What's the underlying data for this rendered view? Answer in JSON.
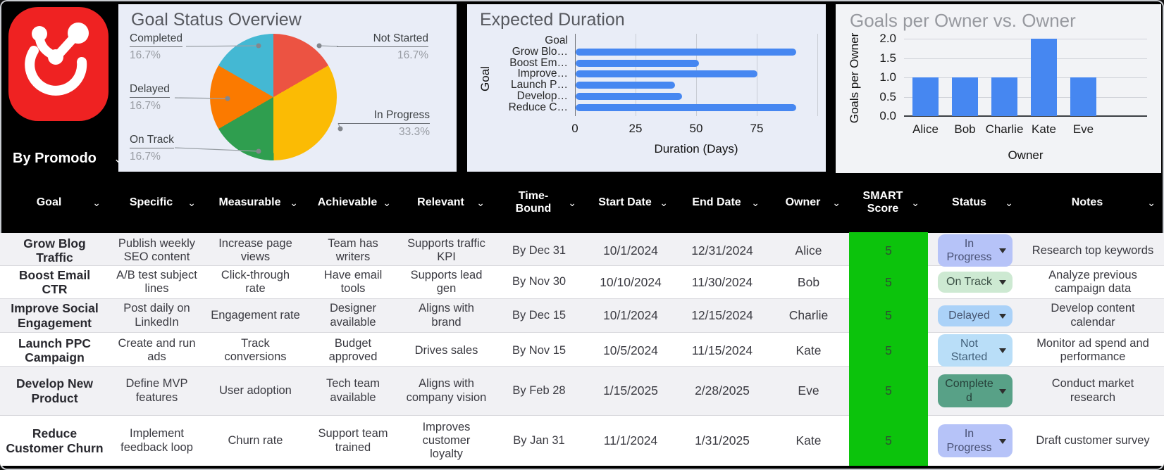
{
  "branding": {
    "by_label": "By Promodo"
  },
  "icons": {
    "chevron_down": "⌄"
  },
  "chart_data": [
    {
      "type": "pie",
      "title": "Goal Status Overview",
      "legend_position": "labeled-callouts",
      "slices": [
        {
          "label": "Not Started",
          "value": 16.7,
          "pct_label": "16.7%",
          "color": "#ec5342"
        },
        {
          "label": "In Progress",
          "value": 33.3,
          "pct_label": "33.3%",
          "color": "#fbbb04"
        },
        {
          "label": "On Track",
          "value": 16.7,
          "pct_label": "16.7%",
          "color": "#2f9e4f"
        },
        {
          "label": "Delayed",
          "value": 16.7,
          "pct_label": "16.7%",
          "color": "#fb7a00"
        },
        {
          "label": "Completed",
          "value": 16.7,
          "pct_label": "16.7%",
          "color": "#44b8d3"
        }
      ]
    },
    {
      "type": "bar",
      "orientation": "horizontal",
      "title": "Expected Duration",
      "xlabel": "Duration (Days)",
      "ylabel": "Goal",
      "categories": [
        "Goal",
        "Grow Blo…",
        "Boost Em…",
        "Improve…",
        "Launch P…",
        "Develop…",
        "Reduce C…"
      ],
      "values": [
        0,
        91,
        51,
        75,
        41,
        44,
        91
      ],
      "xticks": [
        0,
        25,
        50,
        75
      ],
      "grid_ticks": [
        0,
        25,
        50,
        75,
        100
      ],
      "xmax": 100,
      "bar_color": "#4687f1",
      "grid": true
    },
    {
      "type": "bar",
      "orientation": "vertical",
      "title": "Goals per Owner vs. Owner",
      "xlabel": "Owner",
      "ylabel": "Goals per Owner",
      "categories": [
        "Alice",
        "Bob",
        "Charlie",
        "Kate",
        "Eve"
      ],
      "values": [
        1,
        1,
        1,
        2,
        1
      ],
      "yticks": [
        0,
        0.5,
        1,
        1.5,
        2
      ],
      "ytick_labels": [
        "0.0",
        "0.5",
        "1.0",
        "1.5",
        "2.0"
      ],
      "ymax": 2,
      "ylim": [
        0,
        2
      ],
      "bar_color": "#4687f1",
      "grid": true
    }
  ],
  "table": {
    "columns": [
      "Goal",
      "Specific",
      "Measurable",
      "Achievable",
      "Relevant",
      "Time-Bound",
      "Start Date",
      "End Date",
      "Owner",
      "SMART Score",
      "Status",
      "Notes"
    ],
    "score_color": "#0cc30c",
    "rows": [
      {
        "goal": "Grow Blog Traffic",
        "specific": "Publish weekly SEO content",
        "measurable": "Increase page views",
        "achievable": "Team has writers",
        "relevant": "Supports traffic KPI",
        "time_bound": "By Dec 31",
        "start_date": "10/1/2024",
        "end_date": "12/31/2024",
        "owner": "Alice",
        "score": "5",
        "status": {
          "label": "In Progress",
          "style": "in-progress"
        },
        "notes": "Research top keywords"
      },
      {
        "goal": "Boost Email CTR",
        "specific": "A/B test subject lines",
        "measurable": "Click-through rate",
        "achievable": "Have email tools",
        "relevant": "Supports lead gen",
        "time_bound": "By Nov 30",
        "start_date": "10/10/2024",
        "end_date": "11/30/2024",
        "owner": "Bob",
        "score": "5",
        "status": {
          "label": "On Track",
          "style": "on-track"
        },
        "notes": "Analyze previous campaign data"
      },
      {
        "goal": "Improve Social Engagement",
        "specific": "Post daily on LinkedIn",
        "measurable": "Engagement rate",
        "achievable": "Designer available",
        "relevant": "Aligns with brand",
        "time_bound": "By Dec 15",
        "start_date": "10/1/2024",
        "end_date": "12/15/2024",
        "owner": "Charlie",
        "score": "5",
        "status": {
          "label": "Delayed",
          "style": "delayed"
        },
        "notes": "Develop content calendar"
      },
      {
        "goal": "Launch PPC Campaign",
        "specific": "Create and run ads",
        "measurable": "Track conversions",
        "achievable": "Budget approved",
        "relevant": "Drives sales",
        "time_bound": "By Nov 15",
        "start_date": "10/5/2024",
        "end_date": "11/15/2024",
        "owner": "Kate",
        "score": "5",
        "status": {
          "label": "Not Started",
          "style": "not-started"
        },
        "notes": "Monitor ad spend and performance"
      },
      {
        "goal": "Develop New Product",
        "specific": "Define MVP features",
        "measurable": "User adoption",
        "achievable": "Tech team available",
        "relevant": "Aligns with company vision",
        "time_bound": "By Feb 28",
        "start_date": "1/15/2025",
        "end_date": "2/28/2025",
        "owner": "Eve",
        "score": "5",
        "status": {
          "label": "Completed",
          "style": "completed"
        },
        "notes": "Conduct market research"
      },
      {
        "goal": "Reduce Customer Churn",
        "specific": "Implement feedback loop",
        "measurable": "Churn rate",
        "achievable": "Support team trained",
        "relevant": "Improves customer loyalty",
        "time_bound": "By Jan 31",
        "start_date": "11/1/2024",
        "end_date": "1/31/2025",
        "owner": "Kate",
        "score": "5",
        "status": {
          "label": "In Progress",
          "style": "in-progress"
        },
        "notes": "Draft customer survey"
      }
    ]
  }
}
